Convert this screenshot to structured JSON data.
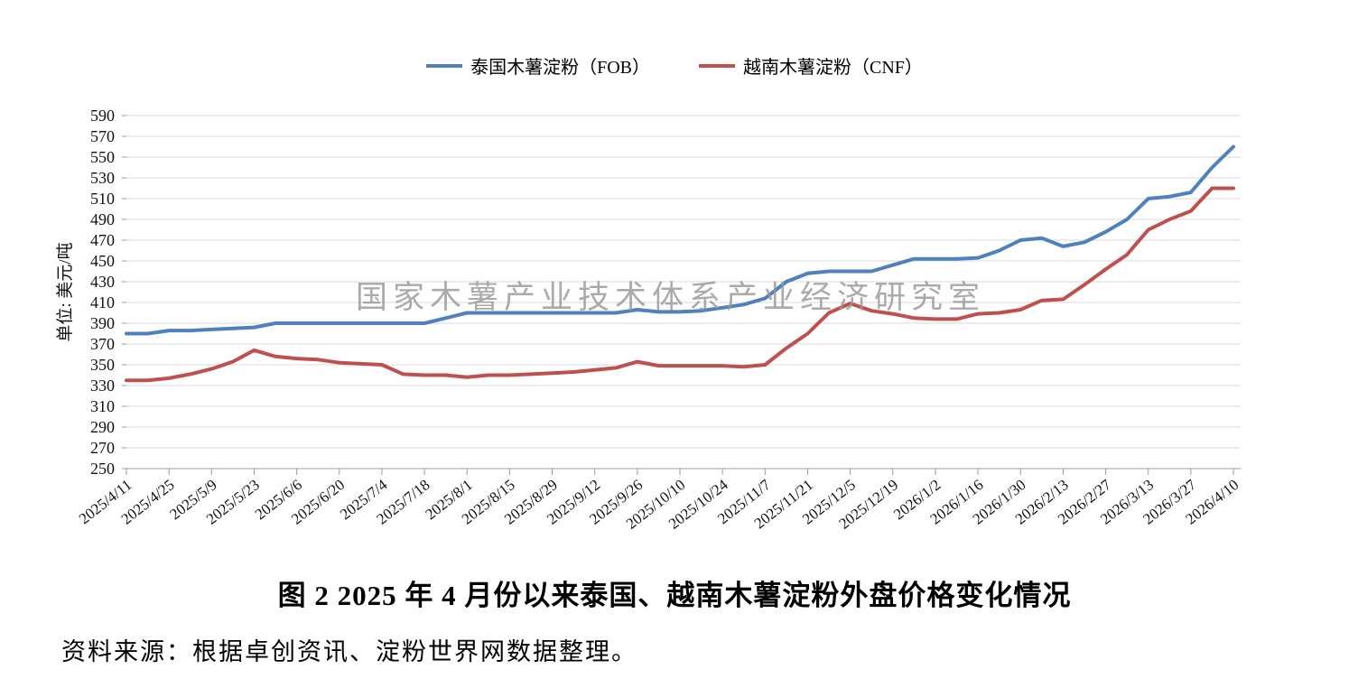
{
  "legend": {
    "items": [
      {
        "label": "泰国木薯淀粉（FOB）",
        "color": "#4F81BD"
      },
      {
        "label": "越南木薯淀粉（CNF）",
        "color": "#C0504D"
      }
    ]
  },
  "watermark": {
    "text": "国家木薯产业技术体系产业经济研究室",
    "color": "#989898"
  },
  "caption": {
    "title": "图 2  2025 年 4 月份以来泰国、越南木薯淀粉外盘价格变化情况"
  },
  "source": {
    "text": "资料来源：根据卓创资讯、淀粉世界网数据整理。"
  },
  "chart_data": {
    "type": "line",
    "title": "",
    "xlabel": "",
    "ylabel": "单位: 美元/吨",
    "ylim": [
      250,
      590
    ],
    "ytick_step": 20,
    "grid": true,
    "legend_position": "top",
    "x_tick_every": 2,
    "x": [
      "2025/4/11",
      "2025/4/18",
      "2025/4/25",
      "2025/5/2",
      "2025/5/9",
      "2025/5/16",
      "2025/5/23",
      "2025/5/30",
      "2025/6/6",
      "2025/6/13",
      "2025/6/20",
      "2025/6/27",
      "2025/7/4",
      "2025/7/11",
      "2025/7/18",
      "2025/7/25",
      "2025/8/1",
      "2025/8/8",
      "2025/8/15",
      "2025/8/22",
      "2025/8/29",
      "2025/9/5",
      "2025/9/12",
      "2025/9/19",
      "2025/9/26",
      "2025/10/3",
      "2025/10/10",
      "2025/10/17",
      "2025/10/24",
      "2025/10/31",
      "2025/11/7",
      "2025/11/14",
      "2025/11/21",
      "2025/11/28",
      "2025/12/5",
      "2025/12/12",
      "2025/12/19",
      "2025/12/26",
      "2026/1/2",
      "2026/1/9",
      "2026/1/16",
      "2026/1/23",
      "2026/1/30",
      "2026/2/6",
      "2026/2/13",
      "2026/2/20",
      "2026/2/27",
      "2026/3/6",
      "2026/3/13",
      "2026/3/20",
      "2026/3/27",
      "2026/4/3",
      "2026/4/10"
    ],
    "series": [
      {
        "name": "泰国木薯淀粉（FOB）",
        "color": "#4F81BD",
        "values": [
          380,
          380,
          383,
          383,
          384,
          385,
          386,
          390,
          390,
          390,
          390,
          390,
          390,
          390,
          390,
          395,
          400,
          400,
          400,
          400,
          400,
          400,
          400,
          400,
          403,
          401,
          401,
          402,
          405,
          408,
          414,
          430,
          438,
          440,
          440,
          440,
          446,
          452,
          452,
          452,
          453,
          460,
          470,
          472,
          464,
          468,
          478,
          490,
          510,
          512,
          516,
          540,
          560
        ]
      },
      {
        "name": "越南木薯淀粉（CNF）",
        "color": "#C0504D",
        "values": [
          335,
          335,
          337,
          341,
          346,
          353,
          364,
          358,
          356,
          355,
          352,
          351,
          350,
          341,
          340,
          340,
          338,
          340,
          340,
          341,
          342,
          343,
          345,
          347,
          353,
          349,
          349,
          349,
          349,
          348,
          350,
          366,
          380,
          400,
          409,
          402,
          399,
          395,
          394,
          394,
          399,
          400,
          403,
          412,
          413,
          427,
          442,
          456,
          480,
          490,
          498,
          520,
          520
        ]
      }
    ]
  }
}
